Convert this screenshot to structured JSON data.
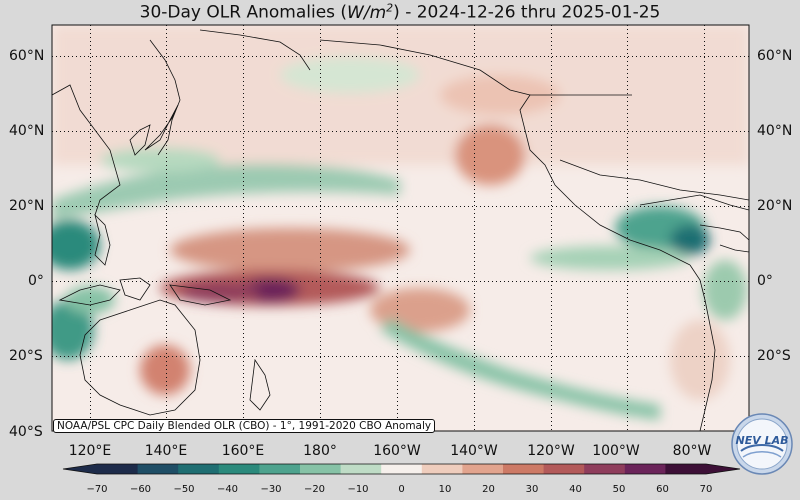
{
  "title": {
    "prefix": "30-Day OLR Anomalies (",
    "unit_base": "W/m",
    "unit_exp": "2",
    "suffix": ") - 2024-12-26 thru 2025-01-25"
  },
  "map": {
    "projection": "Plate Carree, Pacific-centered",
    "lon_range": [
      110,
      290
    ],
    "lat_range": [
      -40,
      68
    ],
    "grid": "dotted",
    "lat_labels_left": [
      "60°N",
      "40°N",
      "20°N",
      "0°",
      "20°S",
      "40°S"
    ],
    "lat_labels_right": [
      "60°N",
      "40°N",
      "20°N",
      "0°",
      "20°S"
    ],
    "lon_labels": [
      "120°E",
      "140°E",
      "160°E",
      "180°",
      "160°W",
      "140°W",
      "120°W",
      "100°W",
      "80°W"
    ]
  },
  "source_note": "NOAA/PSL CPC Daily Blended OLR (CBO) - 1°, 1991-2020 CBO Anomaly",
  "colorbar": {
    "ticks": [
      "−70",
      "−60",
      "−50",
      "−40",
      "−30",
      "−20",
      "−10",
      "0",
      "10",
      "20",
      "30",
      "40",
      "50",
      "60",
      "70"
    ],
    "min": -75,
    "max": 75,
    "extend": "both",
    "colors": [
      "#1d2b4a",
      "#1f4e66",
      "#1f6e72",
      "#2b8a7c",
      "#4ea38e",
      "#86c2a6",
      "#bfdcc6",
      "#f6f0ec",
      "#efcdbd",
      "#e2a48e",
      "#cd7a66",
      "#b35a5a",
      "#8f3d5c",
      "#6b245a",
      "#3d1037"
    ]
  },
  "logo": {
    "text": "NEV LAB",
    "icon": "noaa-psl-logo"
  }
}
